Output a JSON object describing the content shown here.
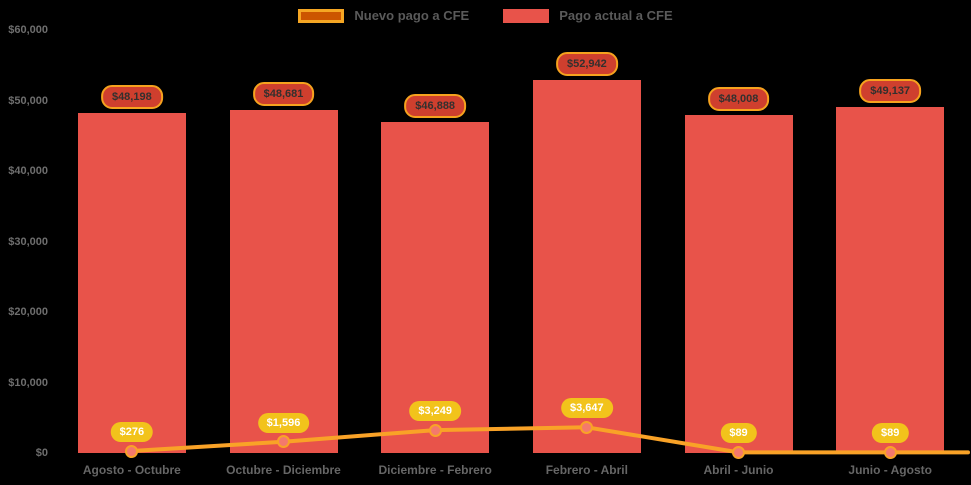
{
  "background_color": "#000000",
  "legend": {
    "items": [
      {
        "label": "Nuevo pago a CFE",
        "swatch_fill": "#cc5500",
        "swatch_border": "#f5a623"
      },
      {
        "label": "Pago actual a CFE",
        "swatch_fill": "#e8534a",
        "swatch_border": "#e8534a"
      }
    ]
  },
  "styles": {
    "bar_color": "#e8534a",
    "line_color": "#f9a227",
    "marker_fill": "#f4796c",
    "marker_border": "#f9a227",
    "bar_badge_fill": "#cf3f2e",
    "bar_badge_border": "#f6a21e",
    "bar_badge_text": "#33302e",
    "line_badge_fill": "#f2c31b",
    "line_badge_text": "#ffffff",
    "axis_text": "#6e6e6e"
  },
  "chart_data": {
    "type": "bar",
    "title": "",
    "xlabel": "",
    "ylabel": "",
    "ylim": [
      0,
      60000
    ],
    "grid": false,
    "legend_position": "top-center",
    "categories": [
      "Agosto - Octubre",
      "Octubre - Diciembre",
      "Diciembre - Febrero",
      "Febrero - Abril",
      "Abril - Junio",
      "Junio - Agosto"
    ],
    "y_ticks": [
      {
        "value": 0,
        "label": "$0"
      },
      {
        "value": 10000,
        "label": "$10,000"
      },
      {
        "value": 20000,
        "label": "$20,000"
      },
      {
        "value": 30000,
        "label": "$30,000"
      },
      {
        "value": 40000,
        "label": "$40,000"
      },
      {
        "value": 50000,
        "label": "$50,000"
      },
      {
        "value": 60000,
        "label": "$60,000"
      }
    ],
    "series": [
      {
        "name": "Pago actual a CFE",
        "render": "bar",
        "color": "#e8534a",
        "values": [
          48198,
          48681,
          46888,
          52942,
          48008,
          49137
        ],
        "labels": [
          "$48,198",
          "$48,681",
          "$46,888",
          "$52,942",
          "$48,008",
          "$49,137"
        ]
      },
      {
        "name": "Nuevo pago a CFE",
        "render": "line",
        "color": "#f9a227",
        "values": [
          276,
          1596,
          3249,
          3647,
          89,
          89
        ],
        "labels": [
          "$276",
          "$1,596",
          "$3,249",
          "$3,647",
          "$89",
          "$89"
        ]
      }
    ]
  }
}
